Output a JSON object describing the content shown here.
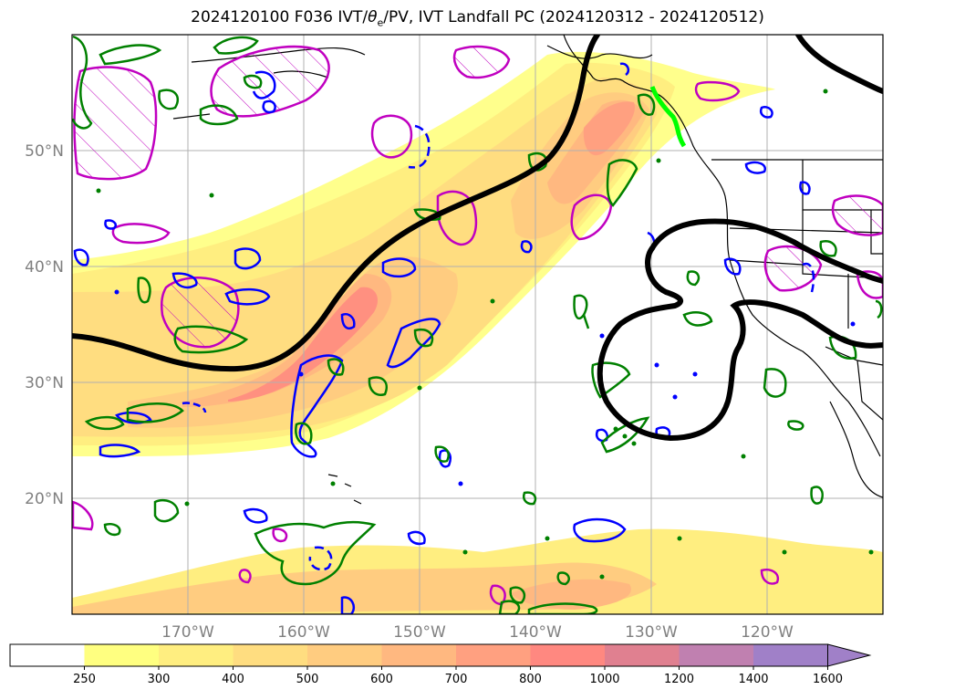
{
  "title": {
    "prefix": "2024120100 F036 IVT/",
    "theta": "θ",
    "theta_sub": "e",
    "suffix": "/PV, IVT Landfall PC (2024120312 - 2024120512)"
  },
  "map": {
    "lat_labels": [
      "50°N",
      "40°N",
      "30°N",
      "20°N"
    ],
    "lat_values": [
      50,
      40,
      30,
      20
    ],
    "lon_labels": [
      "170°W",
      "160°W",
      "150°W",
      "140°W",
      "130°W",
      "120°W"
    ],
    "lon_values": [
      -170,
      -160,
      -150,
      -140,
      -130,
      -120
    ],
    "extent": {
      "lon_min": -180,
      "lon_max": -110,
      "lat_min": 10,
      "lat_max": 60
    },
    "grid": true,
    "colors": {
      "pc_contour": "#000000",
      "theta_e_contour": "#008000",
      "pv_positive": "#c000c0",
      "pv_negative": "#0000ff",
      "landfall": "#00ff00",
      "coastline": "#000000"
    }
  },
  "colorbar": {
    "levels": [
      "250",
      "300",
      "400",
      "500",
      "600",
      "700",
      "800",
      "1000",
      "1200",
      "1400",
      "1600"
    ],
    "colors": [
      "#ffffff",
      "#ffff80",
      "#ffee80",
      "#ffdd80",
      "#ffcc80",
      "#ffb880",
      "#ffa080",
      "#ff8880",
      "#e08090",
      "#c080b0",
      "#a080c8"
    ],
    "extend": "max"
  }
}
